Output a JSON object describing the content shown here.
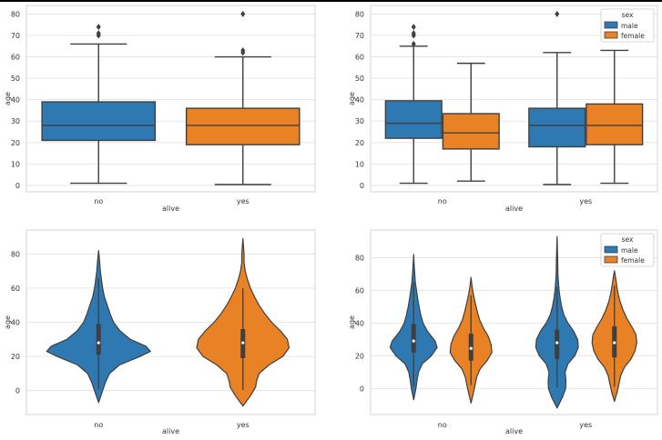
{
  "colors": {
    "male": "#2f79b2",
    "female": "#e98125",
    "edge": "#3f3f3f",
    "grid": "#e0e0e0",
    "frame": "#cccccc",
    "text": "#333333"
  },
  "chart_data": [
    {
      "type": "box",
      "id": "box-alive",
      "title": "",
      "xlabel": "alive",
      "ylabel": "age",
      "categories": [
        "no",
        "yes"
      ],
      "ylim": [
        -3,
        84
      ],
      "yticks": [
        0,
        10,
        20,
        30,
        40,
        50,
        60,
        70,
        80
      ],
      "series": [
        {
          "name": "all",
          "color_key": "single",
          "boxes": [
            {
              "category": "no",
              "color": "#2f79b2",
              "whislo": 1,
              "q1": 21,
              "med": 28,
              "q3": 39,
              "whishi": 66,
              "fliers": [
                70,
                71,
                74
              ]
            },
            {
              "category": "yes",
              "color": "#e98125",
              "whislo": 0.4,
              "q1": 19,
              "med": 28,
              "q3": 36,
              "whishi": 60,
              "fliers": [
                62,
                63,
                80
              ]
            }
          ]
        }
      ]
    },
    {
      "type": "box",
      "id": "box-alive-sex",
      "title": "",
      "xlabel": "alive",
      "ylabel": "age",
      "categories": [
        "no",
        "yes"
      ],
      "ylim": [
        -3,
        84
      ],
      "yticks": [
        0,
        10,
        20,
        30,
        40,
        50,
        60,
        70,
        80
      ],
      "legend": {
        "title": "sex",
        "entries": [
          "male",
          "female"
        ],
        "position": "top-right"
      },
      "series": [
        {
          "name": "male",
          "boxes": [
            {
              "category": "no",
              "whislo": 1,
              "q1": 22,
              "med": 29,
              "q3": 39.5,
              "whishi": 65,
              "fliers": [
                66,
                70,
                71,
                74
              ]
            },
            {
              "category": "yes",
              "whislo": 0.4,
              "q1": 18,
              "med": 28,
              "q3": 36,
              "whishi": 62,
              "fliers": [
                80
              ]
            }
          ]
        },
        {
          "name": "female",
          "boxes": [
            {
              "category": "no",
              "whislo": 2,
              "q1": 17,
              "med": 24.5,
              "q3": 33.5,
              "whishi": 57,
              "fliers": []
            },
            {
              "category": "yes",
              "whislo": 1,
              "q1": 19,
              "med": 28,
              "q3": 38,
              "whishi": 63,
              "fliers": []
            }
          ]
        }
      ]
    },
    {
      "type": "violin",
      "id": "violin-alive",
      "title": "",
      "xlabel": "alive",
      "ylabel": "age",
      "categories": [
        "no",
        "yes"
      ],
      "ylim": [
        -14,
        94
      ],
      "yticks": [
        0,
        20,
        40,
        60,
        80
      ],
      "series": [
        {
          "name": "all",
          "violins": [
            {
              "category": "no",
              "color": "#2f79b2",
              "range": [
                -7,
                82
              ],
              "q1": 21,
              "med": 28,
              "q3": 39,
              "whislo": 1,
              "whishi": 66,
              "profile": [
                [
                  -7,
                  0.0
                ],
                [
                  0,
                  0.07
                ],
                [
                  5,
                  0.12
                ],
                [
                  10,
                  0.19
                ],
                [
                  15,
                  0.36
                ],
                [
                  20,
                  0.72
                ],
                [
                  23,
                  0.9
                ],
                [
                  26,
                  0.82
                ],
                [
                  30,
                  0.55
                ],
                [
                  35,
                  0.37
                ],
                [
                  40,
                  0.26
                ],
                [
                  45,
                  0.2
                ],
                [
                  50,
                  0.15
                ],
                [
                  55,
                  0.1
                ],
                [
                  60,
                  0.07
                ],
                [
                  65,
                  0.05
                ],
                [
                  70,
                  0.03
                ],
                [
                  75,
                  0.02
                ],
                [
                  82,
                  0.0
                ]
              ]
            },
            {
              "category": "yes",
              "color": "#e98125",
              "range": [
                -9,
                89
              ],
              "q1": 19,
              "med": 28,
              "q3": 36,
              "whislo": 0.4,
              "whishi": 60,
              "profile": [
                [
                  -9,
                  0.0
                ],
                [
                  -3,
                  0.13
                ],
                [
                  2,
                  0.22
                ],
                [
                  6,
                  0.24
                ],
                [
                  10,
                  0.28
                ],
                [
                  15,
                  0.45
                ],
                [
                  20,
                  0.69
                ],
                [
                  25,
                  0.8
                ],
                [
                  30,
                  0.77
                ],
                [
                  35,
                  0.65
                ],
                [
                  40,
                  0.5
                ],
                [
                  45,
                  0.38
                ],
                [
                  50,
                  0.28
                ],
                [
                  55,
                  0.2
                ],
                [
                  60,
                  0.13
                ],
                [
                  65,
                  0.08
                ],
                [
                  70,
                  0.04
                ],
                [
                  75,
                  0.02
                ],
                [
                  80,
                  0.02
                ],
                [
                  89,
                  0.0
                ]
              ]
            }
          ]
        }
      ]
    },
    {
      "type": "violin",
      "id": "violin-alive-sex",
      "title": "",
      "xlabel": "alive",
      "ylabel": "age",
      "categories": [
        "no",
        "yes"
      ],
      "ylim": [
        -16,
        97
      ],
      "yticks": [
        0,
        20,
        40,
        60,
        80
      ],
      "legend": {
        "title": "sex",
        "entries": [
          "male",
          "female"
        ],
        "position": "top-right"
      },
      "series": [
        {
          "name": "male",
          "violins": [
            {
              "category": "no",
              "range": [
                -7,
                82
              ],
              "q1": 22,
              "med": 29,
              "q3": 39.5,
              "whislo": 1,
              "whishi": 65,
              "profile": [
                [
                  -7,
                  0.0
                ],
                [
                  0,
                  0.08
                ],
                [
                  5,
                  0.12
                ],
                [
                  10,
                  0.17
                ],
                [
                  15,
                  0.3
                ],
                [
                  20,
                  0.62
                ],
                [
                  25,
                  0.82
                ],
                [
                  29,
                  0.75
                ],
                [
                  35,
                  0.48
                ],
                [
                  40,
                  0.33
                ],
                [
                  45,
                  0.25
                ],
                [
                  50,
                  0.19
                ],
                [
                  55,
                  0.14
                ],
                [
                  60,
                  0.1
                ],
                [
                  65,
                  0.06
                ],
                [
                  70,
                  0.04
                ],
                [
                  75,
                  0.02
                ],
                [
                  82,
                  0.0
                ]
              ]
            },
            {
              "category": "yes",
              "range": [
                -12,
                93
              ],
              "q1": 18,
              "med": 28,
              "q3": 36,
              "whislo": 0.4,
              "whishi": 62,
              "profile": [
                [
                  -12,
                  0.0
                ],
                [
                  -5,
                  0.2
                ],
                [
                  0,
                  0.3
                ],
                [
                  5,
                  0.31
                ],
                [
                  10,
                  0.28
                ],
                [
                  15,
                  0.38
                ],
                [
                  20,
                  0.62
                ],
                [
                  25,
                  0.74
                ],
                [
                  30,
                  0.72
                ],
                [
                  35,
                  0.58
                ],
                [
                  40,
                  0.38
                ],
                [
                  45,
                  0.24
                ],
                [
                  50,
                  0.16
                ],
                [
                  55,
                  0.11
                ],
                [
                  60,
                  0.07
                ],
                [
                  65,
                  0.05
                ],
                [
                  70,
                  0.03
                ],
                [
                  80,
                  0.02
                ],
                [
                  93,
                  0.0
                ]
              ]
            }
          ]
        },
        {
          "name": "female",
          "violins": [
            {
              "category": "no",
              "range": [
                -9,
                68
              ],
              "q1": 17,
              "med": 24.5,
              "q3": 33.5,
              "whislo": 2,
              "whishi": 57,
              "profile": [
                [
                  -9,
                  0.0
                ],
                [
                  -3,
                  0.08
                ],
                [
                  2,
                  0.14
                ],
                [
                  7,
                  0.2
                ],
                [
                  12,
                  0.32
                ],
                [
                  17,
                  0.56
                ],
                [
                  22,
                  0.73
                ],
                [
                  27,
                  0.7
                ],
                [
                  32,
                  0.6
                ],
                [
                  37,
                  0.43
                ],
                [
                  42,
                  0.3
                ],
                [
                  47,
                  0.22
                ],
                [
                  52,
                  0.15
                ],
                [
                  57,
                  0.09
                ],
                [
                  62,
                  0.04
                ],
                [
                  68,
                  0.0
                ]
              ]
            },
            {
              "category": "yes",
              "range": [
                -8,
                72
              ],
              "q1": 19,
              "med": 28,
              "q3": 38,
              "whislo": 1,
              "whishi": 63,
              "profile": [
                [
                  -8,
                  0.0
                ],
                [
                  -2,
                  0.1
                ],
                [
                  3,
                  0.16
                ],
                [
                  8,
                  0.22
                ],
                [
                  13,
                  0.35
                ],
                [
                  18,
                  0.58
                ],
                [
                  23,
                  0.72
                ],
                [
                  28,
                  0.78
                ],
                [
                  33,
                  0.75
                ],
                [
                  38,
                  0.6
                ],
                [
                  43,
                  0.43
                ],
                [
                  48,
                  0.3
                ],
                [
                  53,
                  0.2
                ],
                [
                  58,
                  0.13
                ],
                [
                  63,
                  0.08
                ],
                [
                  68,
                  0.04
                ],
                [
                  72,
                  0.0
                ]
              ]
            }
          ]
        }
      ]
    }
  ]
}
